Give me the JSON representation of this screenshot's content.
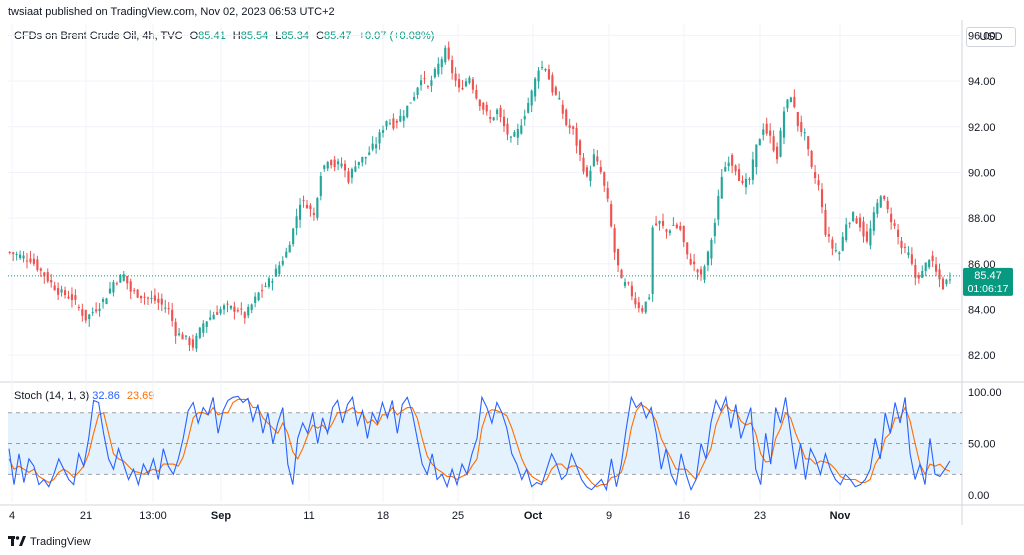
{
  "header": {
    "published": "twsiaat published on TradingView.com, Nov 02, 2023 06:53 UTC+2"
  },
  "legend": {
    "symbol": "CFDs on Brent Crude Oil, 4h, TVC",
    "o_label": "O",
    "o_value": "85.41",
    "h_label": "H",
    "h_value": "85.54",
    "l_label": "L",
    "l_value": "85.34",
    "c_label": "C",
    "c_value": "85.47",
    "change": "+0.07 (+0.08%)"
  },
  "currency_button": "USD",
  "last_price_label": {
    "price": "85.47",
    "countdown": "01:06:17"
  },
  "stoch_legend": {
    "name": "Stoch (14, 1, 3)",
    "k_value": "32.86",
    "d_value": "23.69"
  },
  "footer": {
    "brand": "TradingView"
  },
  "colors": {
    "up": "#26a69a",
    "down": "#ef5350",
    "k_line": "#2962ff",
    "d_line": "#ff6d00",
    "band_fill": "#e3f2fd",
    "price_line": "#089981"
  },
  "chart_data": [
    {
      "type": "candlestick",
      "title": "CFDs on Brent Crude Oil, 4h, TVC",
      "ylim": [
        81,
        96.5
      ],
      "y_ticks": [
        "96.00",
        "94.00",
        "92.00",
        "90.00",
        "88.00",
        "86.00",
        "84.00",
        "82.00"
      ],
      "y_tick_values": [
        96,
        94,
        92,
        90,
        88,
        86,
        84,
        82
      ],
      "x_tick_labels": [
        "4",
        "21",
        "13:00",
        "Sep",
        "11",
        "18",
        "25",
        "Oct",
        "9",
        "16",
        "23",
        "Nov"
      ],
      "last_price": 85.47,
      "close_path": [
        [
          0,
          86.5
        ],
        [
          6,
          86.2
        ],
        [
          10,
          85.5
        ],
        [
          14,
          84.8
        ],
        [
          18,
          84.5
        ],
        [
          22,
          83.6
        ],
        [
          26,
          84.2
        ],
        [
          28,
          84.6
        ],
        [
          30,
          85.2
        ],
        [
          33,
          85.5
        ],
        [
          35,
          84.8
        ],
        [
          38,
          84.6
        ],
        [
          42,
          84.4
        ],
        [
          46,
          84.0
        ],
        [
          48,
          83.0
        ],
        [
          51,
          82.7
        ],
        [
          53,
          82.4
        ],
        [
          56,
          83.4
        ],
        [
          59,
          83.8
        ],
        [
          62,
          84.1
        ],
        [
          66,
          84.0
        ],
        [
          68,
          83.7
        ],
        [
          72,
          84.7
        ],
        [
          76,
          85.4
        ],
        [
          80,
          86.5
        ],
        [
          82,
          87.5
        ],
        [
          84,
          88.7
        ],
        [
          86,
          88.6
        ],
        [
          88,
          88.1
        ],
        [
          90,
          90.0
        ],
        [
          92,
          90.6
        ],
        [
          94,
          90.3
        ],
        [
          96,
          90.4
        ],
        [
          98,
          89.7
        ],
        [
          100,
          90.4
        ],
        [
          103,
          90.7
        ],
        [
          106,
          91.3
        ],
        [
          109,
          92.3
        ],
        [
          111,
          92.1
        ],
        [
          114,
          92.6
        ],
        [
          117,
          93.4
        ],
        [
          119,
          94.2
        ],
        [
          121,
          93.7
        ],
        [
          124,
          94.7
        ],
        [
          126,
          95.3
        ],
        [
          128,
          94.4
        ],
        [
          130,
          93.6
        ],
        [
          133,
          94.2
        ],
        [
          135,
          93.3
        ],
        [
          137,
          92.8
        ],
        [
          139,
          92.3
        ],
        [
          141,
          92.7
        ],
        [
          143,
          92.0
        ],
        [
          145,
          91.4
        ],
        [
          147,
          91.8
        ],
        [
          149,
          92.6
        ],
        [
          151,
          93.5
        ],
        [
          153,
          94.6
        ],
        [
          155,
          94.6
        ],
        [
          157,
          93.6
        ],
        [
          159,
          93.1
        ],
        [
          161,
          92.1
        ],
        [
          163,
          91.8
        ],
        [
          165,
          90.7
        ],
        [
          167,
          89.7
        ],
        [
          169,
          90.7
        ],
        [
          171,
          90.0
        ],
        [
          173,
          88.7
        ],
        [
          175,
          86.5
        ],
        [
          177,
          85.2
        ],
        [
          179,
          85.0
        ],
        [
          181,
          84.3
        ],
        [
          183,
          84.0
        ],
        [
          185,
          84.6
        ],
        [
          186,
          87.6
        ],
        [
          188,
          87.8
        ],
        [
          190,
          87.4
        ],
        [
          192,
          87.7
        ],
        [
          194,
          87.5
        ],
        [
          196,
          86.3
        ],
        [
          198,
          85.9
        ],
        [
          200,
          85.4
        ],
        [
          202,
          86.4
        ],
        [
          204,
          87.8
        ],
        [
          206,
          89.9
        ],
        [
          208,
          90.6
        ],
        [
          210,
          90.2
        ],
        [
          212,
          89.4
        ],
        [
          214,
          89.7
        ],
        [
          216,
          91.1
        ],
        [
          218,
          92.0
        ],
        [
          220,
          91.5
        ],
        [
          222,
          90.7
        ],
        [
          224,
          92.7
        ],
        [
          226,
          93.4
        ],
        [
          228,
          92.1
        ],
        [
          230,
          91.6
        ],
        [
          232,
          90.1
        ],
        [
          234,
          89.4
        ],
        [
          236,
          87.4
        ],
        [
          238,
          86.7
        ],
        [
          240,
          86.5
        ],
        [
          242,
          87.8
        ],
        [
          244,
          88.1
        ],
        [
          246,
          87.7
        ],
        [
          248,
          86.9
        ],
        [
          250,
          88.1
        ],
        [
          252,
          89.1
        ],
        [
          254,
          88.3
        ],
        [
          256,
          87.6
        ],
        [
          258,
          86.7
        ],
        [
          260,
          86.4
        ],
        [
          262,
          85.4
        ],
        [
          264,
          85.6
        ],
        [
          266,
          86.3
        ],
        [
          268,
          85.6
        ],
        [
          270,
          85.0
        ],
        [
          272,
          85.47
        ]
      ]
    },
    {
      "type": "line",
      "title": "Stoch (14, 1, 3)",
      "ylim": [
        -5,
        108
      ],
      "y_ticks": [
        "100.00",
        "50.00",
        "0.00"
      ],
      "y_tick_values": [
        100,
        50,
        0
      ],
      "bands": {
        "upper": 80,
        "middle": 50,
        "lower": 20
      },
      "series": [
        {
          "name": "K",
          "last": 32.86,
          "values": [
            45,
            10,
            40,
            12,
            35,
            28,
            10,
            15,
            8,
            20,
            35,
            25,
            15,
            10,
            40,
            28,
            55,
            92,
            90,
            60,
            35,
            25,
            45,
            30,
            15,
            25,
            10,
            30,
            20,
            35,
            15,
            45,
            28,
            20,
            35,
            55,
            82,
            90,
            70,
            85,
            78,
            95,
            60,
            82,
            92,
            95,
            96,
            90,
            94,
            72,
            88,
            60,
            80,
            50,
            70,
            85,
            30,
            10,
            55,
            70,
            60,
            80,
            50,
            75,
            60,
            85,
            92,
            70,
            88,
            95,
            68,
            82,
            55,
            80,
            70,
            90,
            75,
            92,
            60,
            88,
            95,
            80,
            55,
            30,
            20,
            40,
            15,
            20,
            8,
            25,
            10,
            30,
            20,
            40,
            55,
            95,
            85,
            70,
            90,
            80,
            65,
            40,
            30,
            15,
            25,
            8,
            12,
            10,
            25,
            40,
            30,
            15,
            20,
            40,
            28,
            15,
            8,
            5,
            10,
            15,
            5,
            35,
            8,
            30,
            65,
            95,
            85,
            90,
            75,
            85,
            60,
            25,
            45,
            20,
            10,
            40,
            20,
            5,
            15,
            50,
            35,
            70,
            92,
            82,
            95,
            65,
            88,
            55,
            70,
            85,
            25,
            10,
            60,
            30,
            85,
            70,
            95,
            60,
            25,
            50,
            15,
            45,
            35,
            20,
            40,
            25,
            15,
            10,
            20,
            15,
            8,
            10,
            15,
            25,
            55,
            35,
            80,
            60,
            90,
            70,
            95,
            40,
            15,
            30,
            10,
            55,
            20,
            18,
            25,
            33
          ]
        },
        {
          "name": "D",
          "last": 23.69,
          "values": [
            35,
            25,
            28,
            25,
            22,
            25,
            18,
            15,
            12,
            15,
            22,
            25,
            22,
            17,
            22,
            28,
            40,
            60,
            78,
            80,
            60,
            40,
            35,
            33,
            28,
            23,
            22,
            20,
            23,
            25,
            23,
            30,
            30,
            30,
            28,
            37,
            55,
            75,
            80,
            80,
            78,
            85,
            78,
            80,
            80,
            90,
            93,
            93,
            93,
            85,
            85,
            75,
            70,
            65,
            60,
            70,
            60,
            42,
            35,
            45,
            58,
            68,
            65,
            68,
            62,
            70,
            80,
            80,
            82,
            85,
            80,
            80,
            70,
            73,
            68,
            78,
            78,
            85,
            78,
            82,
            85,
            85,
            75,
            55,
            38,
            30,
            25,
            22,
            18,
            18,
            15,
            18,
            20,
            28,
            35,
            65,
            80,
            83,
            82,
            80,
            77,
            65,
            50,
            35,
            25,
            18,
            15,
            12,
            15,
            25,
            30,
            30,
            25,
            28,
            28,
            25,
            18,
            12,
            8,
            10,
            10,
            17,
            18,
            22,
            38,
            65,
            82,
            88,
            85,
            80,
            72,
            55,
            45,
            35,
            25,
            25,
            25,
            20,
            15,
            25,
            35,
            45,
            68,
            80,
            88,
            82,
            82,
            72,
            68,
            70,
            60,
            40,
            32,
            33,
            55,
            65,
            80,
            75,
            60,
            48,
            35,
            35,
            30,
            33,
            32,
            30,
            25,
            18,
            15,
            15,
            15,
            12,
            12,
            15,
            30,
            38,
            55,
            60,
            75,
            75,
            85,
            72,
            50,
            30,
            20,
            30,
            28,
            30,
            25,
            23
          ]
        }
      ],
      "x_tick_labels": [
        "4",
        "21",
        "13:00",
        "Sep",
        "11",
        "18",
        "25",
        "Oct",
        "9",
        "16",
        "23",
        "Nov"
      ]
    }
  ]
}
